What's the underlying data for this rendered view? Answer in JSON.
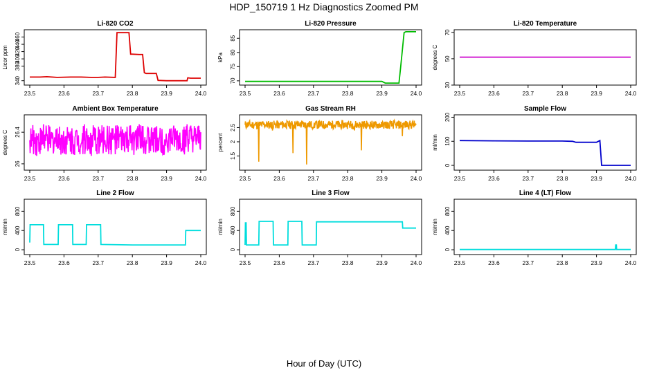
{
  "title": "HDP_150719  1 Hz Diagnostics Zoomed PM",
  "xlabel": "Hour of Day (UTC)",
  "chart_data": [
    {
      "type": "line",
      "title": "Li-820 CO2",
      "ylabel": "Licor ppm",
      "xlim": [
        23.5,
        24.0
      ],
      "ylim": [
        328,
        480
      ],
      "xticks": [
        "23.5",
        "23.6",
        "23.7",
        "23.8",
        "23.9",
        "24.0"
      ],
      "yticks": [
        340,
        380,
        400,
        420,
        440,
        460
      ],
      "color": "#dd0000",
      "series": [
        {
          "x": [
            23.5,
            23.53,
            23.55,
            23.58,
            23.62,
            23.65,
            23.68,
            23.7,
            23.72,
            23.75,
            23.755,
            23.76,
            23.78,
            23.79,
            23.795,
            23.8,
            23.82,
            23.83,
            23.835,
            23.84,
            23.86,
            23.87,
            23.875,
            23.9,
            23.93,
            23.96,
            23.962,
            23.97,
            24.0
          ],
          "y": [
            350,
            350,
            351,
            349,
            350,
            350,
            349,
            349,
            350,
            349,
            472,
            472,
            472,
            472,
            413,
            413,
            412,
            412,
            362,
            360,
            360,
            360,
            341,
            340,
            340,
            340,
            348,
            347,
            347
          ]
        }
      ]
    },
    {
      "type": "line",
      "title": "Li-820 Pressure",
      "ylabel": "kPa",
      "xlim": [
        23.5,
        24.0
      ],
      "ylim": [
        68.5,
        88
      ],
      "xticks": [
        "23.5",
        "23.6",
        "23.7",
        "23.8",
        "23.9",
        "24.0"
      ],
      "yticks": [
        70,
        75,
        80,
        85
      ],
      "color": "#00bb00",
      "series": [
        {
          "x": [
            23.5,
            23.6,
            23.7,
            23.8,
            23.9,
            23.91,
            23.95,
            23.955,
            23.965,
            23.97,
            24.0
          ],
          "y": [
            69.8,
            69.8,
            69.8,
            69.8,
            69.8,
            69.2,
            69.2,
            75.0,
            87.0,
            87.3,
            87.3
          ]
        }
      ]
    },
    {
      "type": "line",
      "title": "Li-820 Temperature",
      "ylabel": "degrees C",
      "xlim": [
        23.5,
        24.0
      ],
      "ylim": [
        30,
        72
      ],
      "xticks": [
        "23.5",
        "23.6",
        "23.7",
        "23.8",
        "23.9",
        "24.0"
      ],
      "yticks": [
        30,
        50,
        70
      ],
      "color": "#cc00cc",
      "series": [
        {
          "x": [
            23.5,
            24.0
          ],
          "y": [
            51.2,
            51.2
          ]
        }
      ]
    },
    {
      "type": "line",
      "title": "Ambient Box Temperature",
      "ylabel": "degrees C",
      "xlim": [
        23.5,
        24.0
      ],
      "ylim": [
        25.92,
        26.62
      ],
      "xticks": [
        "23.5",
        "23.6",
        "23.7",
        "23.8",
        "23.9",
        "24.0"
      ],
      "yticks": [
        26.0,
        26.4
      ],
      "color": "#ff00ff",
      "series": [
        {
          "x": [
            23.5,
            23.52,
            23.54,
            23.56,
            23.58,
            23.6,
            23.62,
            23.64,
            23.66,
            23.68,
            23.7,
            23.72,
            23.74,
            23.76,
            23.78,
            23.8,
            23.82,
            23.84,
            23.86,
            23.88,
            23.9,
            23.92,
            23.94,
            23.96,
            23.98,
            24.0
          ],
          "y": [
            26.3,
            26.1,
            26.5,
            26.2,
            26.45,
            26.15,
            26.4,
            26.25,
            26.5,
            26.1,
            26.35,
            26.3,
            26.45,
            26.2,
            26.4,
            26.3,
            26.5,
            26.25,
            26.4,
            26.35,
            26.3,
            26.45,
            26.2,
            26.5,
            26.3,
            26.4
          ]
        }
      ]
    },
    {
      "type": "line",
      "title": "Gas Stream RH",
      "ylabel": "percent",
      "xlim": [
        23.5,
        24.0
      ],
      "ylim": [
        1.0,
        2.95
      ],
      "xticks": [
        "23.5",
        "23.6",
        "23.7",
        "23.8",
        "23.9",
        "24.0"
      ],
      "yticks": [
        1.5,
        2.0,
        2.5
      ],
      "color": "#ee9900",
      "series": [
        {
          "x": [
            23.5,
            23.52,
            23.54,
            23.56,
            23.58,
            23.6,
            23.62,
            23.64,
            23.66,
            23.68,
            23.7,
            23.72,
            23.74,
            23.76,
            23.78,
            23.8,
            23.82,
            23.84,
            23.86,
            23.88,
            23.9,
            23.92,
            23.94,
            23.96,
            23.98,
            24.0
          ],
          "y": [
            2.6,
            2.5,
            1.3,
            2.6,
            2.4,
            2.6,
            2.5,
            1.6,
            2.6,
            1.2,
            2.5,
            2.6,
            2.5,
            2.6,
            2.5,
            2.6,
            2.4,
            1.7,
            2.6,
            2.5,
            2.6,
            2.5,
            2.6,
            2.2,
            2.6,
            2.6
          ]
        }
      ]
    },
    {
      "type": "line",
      "title": "Sample Flow",
      "ylabel": "ml/min",
      "xlim": [
        23.5,
        24.0
      ],
      "ylim": [
        -20,
        210
      ],
      "xticks": [
        "23.5",
        "23.6",
        "23.7",
        "23.8",
        "23.9",
        "24.0"
      ],
      "yticks": [
        0,
        100,
        200
      ],
      "color": "#0000cc",
      "series": [
        {
          "x": [
            23.5,
            23.6,
            23.7,
            23.8,
            23.83,
            23.84,
            23.9,
            23.91,
            23.915,
            23.92,
            24.0
          ],
          "y": [
            103,
            102,
            101,
            101,
            100,
            96,
            96,
            103,
            0,
            0,
            0
          ]
        }
      ]
    },
    {
      "type": "line",
      "title": "Line 2 Flow",
      "ylabel": "ml/min",
      "xlim": [
        23.5,
        24.0
      ],
      "ylim": [
        -100,
        1050
      ],
      "xticks": [
        "23.5",
        "23.6",
        "23.7",
        "23.8",
        "23.9",
        "24.0"
      ],
      "yticks": [
        0,
        400,
        800
      ],
      "color": "#00dddd",
      "series": [
        {
          "x": [
            23.5,
            23.501,
            23.54,
            23.541,
            23.583,
            23.584,
            23.625,
            23.626,
            23.665,
            23.666,
            23.707,
            23.708,
            23.8,
            23.9,
            23.955,
            23.956,
            24.0
          ],
          "y": [
            150,
            520,
            520,
            110,
            110,
            520,
            520,
            110,
            110,
            520,
            520,
            110,
            100,
            100,
            100,
            400,
            400
          ]
        }
      ]
    },
    {
      "type": "line",
      "title": "Line 3 Flow",
      "ylabel": "ml/min",
      "xlim": [
        23.5,
        24.0
      ],
      "ylim": [
        -100,
        1050
      ],
      "xticks": [
        "23.5",
        "23.6",
        "23.7",
        "23.8",
        "23.9",
        "24.0"
      ],
      "yticks": [
        0,
        400,
        800
      ],
      "color": "#00dddd",
      "series": [
        {
          "x": [
            23.5,
            23.501,
            23.503,
            23.504,
            23.54,
            23.541,
            23.582,
            23.583,
            23.625,
            23.626,
            23.666,
            23.667,
            23.708,
            23.709,
            23.8,
            23.9,
            23.96,
            23.961,
            24.0
          ],
          "y": [
            100,
            560,
            560,
            100,
            100,
            590,
            590,
            100,
            100,
            590,
            590,
            100,
            100,
            580,
            580,
            580,
            580,
            450,
            450
          ]
        }
      ]
    },
    {
      "type": "line",
      "title": "Line 4 (LT) Flow",
      "ylabel": "ml/min",
      "xlim": [
        23.5,
        24.0
      ],
      "ylim": [
        -100,
        1050
      ],
      "xticks": [
        "23.5",
        "23.6",
        "23.7",
        "23.8",
        "23.9",
        "24.0"
      ],
      "yticks": [
        0,
        400,
        800
      ],
      "color": "#00dddd",
      "series": [
        {
          "x": [
            23.5,
            23.7,
            23.9,
            23.955,
            23.956,
            23.958,
            23.959,
            24.0
          ],
          "y": [
            5,
            5,
            5,
            5,
            100,
            100,
            5,
            5
          ]
        }
      ]
    }
  ]
}
